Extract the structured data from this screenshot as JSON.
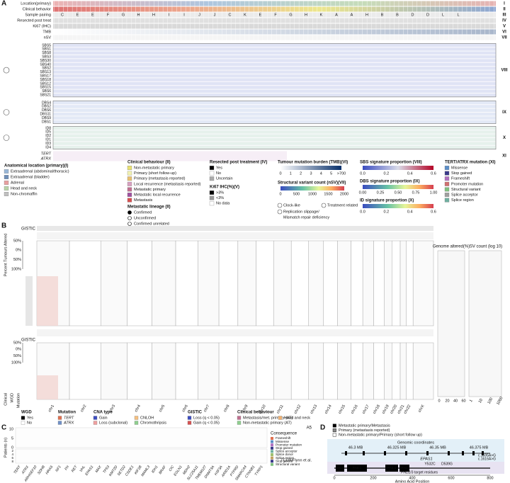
{
  "panel_a": {
    "letter": "A",
    "rows": [
      "Location(primary)",
      "Clinical behavior",
      "Sample pairing",
      "Resected post treat",
      "Ki67 (IHC)",
      "TMB",
      "nSV"
    ],
    "row_numerals": [
      "I",
      "II",
      "III",
      "IV",
      "V",
      "VI",
      "VII"
    ],
    "pairing_letters": [
      "C",
      "E",
      "E",
      "F",
      "G",
      "H",
      "H",
      "I",
      "I",
      "J",
      "J",
      "C",
      "K",
      "E",
      "F",
      "G",
      "H",
      "K",
      "A",
      "A",
      "H",
      "B",
      "B",
      "D",
      "D",
      "L",
      "L"
    ],
    "sbs_rows": [
      "SBS5",
      "SBS1",
      "SBS8",
      "SBS3",
      "SBS30",
      "SBS40",
      "SBS2",
      "SBS13",
      "SBS17",
      "SBS18",
      "SBS12",
      "SBS15",
      "SBS6",
      "SBS21"
    ],
    "sbs_numeral": "VIII",
    "dbs_rows": [
      "DBS4",
      "DBS2",
      "DBS6",
      "DBS11",
      "DBS9",
      "DBS1"
    ],
    "dbs_numeral": "IX",
    "id_rows": [
      "ID8",
      "ID5",
      "ID2",
      "ID1",
      "ID3",
      "ID4"
    ],
    "id_numeral": "X",
    "gene_rows": [
      "TERT",
      "ATRX"
    ],
    "gene_numeral": "XI",
    "legend_location": {
      "title": "Anatomical location (primary)(I)",
      "items": [
        "Extraadrenal (abdominal/thoracic)",
        "Extraadrenal (bladder)",
        "Adrenal",
        "Head and neck",
        "Non-chromaffin"
      ]
    },
    "legend_clinical": {
      "title": "Clinical behaviour (II)",
      "items": [
        "Non-metastatic primary",
        "Primary (short follow-up)",
        "Primary (metastasis reported)",
        "Local recurrence (metastasis reported)",
        "Metastatic primary",
        "Metastatic local recurrence",
        "Metastasis"
      ]
    },
    "legend_lineage": {
      "title": "Metastatic lineage (II)",
      "items": [
        "Confirmed",
        "Unconfirmed",
        "Confirmed unrelated"
      ]
    },
    "legend_resected": {
      "title": "Resected post treatment (IV)",
      "items": [
        "Yes",
        "No",
        "Uncertain"
      ]
    },
    "legend_ki67": {
      "title": "Ki67 IHC(%)(V)",
      "items": [
        ">3%",
        "<3%",
        "No data"
      ]
    },
    "legend_tmb": {
      "title": "Tumour mutation burden (TMB)(VI)",
      "ticks": [
        "0",
        "1",
        "2",
        "3",
        "4",
        "5",
        ">700"
      ]
    },
    "legend_nsv": {
      "title": "Structural variant count (nSV)(VII)",
      "ticks": [
        "0",
        "500",
        "1000",
        "1500",
        "2000"
      ]
    },
    "legend_icons": [
      "Clock-like",
      "Treatment related",
      "Replication slippage/",
      "Mismatch repair deficiency"
    ],
    "legend_sbs": {
      "title": "SBS signature proportion (VIII)",
      "ticks": [
        "0.0",
        "0.2",
        "0.4",
        "0.6"
      ]
    },
    "legend_dbs": {
      "title": "DBS signature proportion (IX)",
      "ticks": [
        "0.00",
        "0.25",
        "0.50",
        "0.75",
        "1.00"
      ]
    },
    "legend_id": {
      "title": "ID signature proportion (X)",
      "ticks": [
        "0.0",
        "0.2",
        "0.4",
        "0.6"
      ]
    },
    "legend_mutation": {
      "title": "TERT/ATRX mutation (XI)",
      "items": [
        "Missense",
        "Stop gained",
        "Frameshift",
        "Promoter mutation",
        "Structural variant",
        "Splice acceptor",
        "Splice region"
      ]
    }
  },
  "panel_b": {
    "letter": "B",
    "gistic": "GISTIC",
    "title_sympathetic": "Sympathetic (chromaffin)",
    "title_parasympathetic": "Parasympathetic (non-chromaffin)",
    "percent_ticks": [
      "50%",
      "0%",
      "50%",
      "100%"
    ],
    "percent_label": "Percent Tumours Altered",
    "track_labels": [
      "Clinical",
      "WGD",
      "Mutation"
    ],
    "chromosomes": [
      "chr1",
      "chr2",
      "chr3",
      "chr4",
      "chr5",
      "chr6",
      "chr7",
      "chr8",
      "chr9",
      "chr10",
      "chr11",
      "chr12",
      "chr13",
      "chr14",
      "chr15",
      "chr16",
      "chr17",
      "chr18",
      "chr19",
      "chr20",
      "chr21",
      "chr22",
      "chrX"
    ],
    "genome_altered": {
      "title": "Genome altered(%)",
      "ticks": [
        "0",
        "20",
        "40",
        "60"
      ]
    },
    "sv_count": {
      "title": "SV count (log 10)",
      "ticks": [
        "1",
        "10",
        "100",
        "1000"
      ]
    },
    "legend_wgd": {
      "title": "WGD",
      "items": [
        "Yes",
        "No"
      ]
    },
    "legend_mutation": {
      "title": "Mutation",
      "items": [
        "TERT",
        "ATRX"
      ]
    },
    "legend_cna": {
      "title": "CNA type",
      "items": [
        "Gain",
        "Loss (subclonal)",
        "CNLOH",
        "Chromothripsis"
      ]
    },
    "legend_gistic": {
      "title": "GISTIC",
      "items": [
        "Loss (q < 0.05)",
        "Gain (q < 0.05)"
      ]
    },
    "legend_clinical": {
      "title": "Clinical behaviour",
      "items": [
        "Metastasis/met. primary (AT)",
        "Non-metastatic primary (AT)",
        "Head and neck"
      ]
    }
  },
  "panel_c": {
    "letter": "C",
    "subtitle": "A5",
    "y_label": "Patients (n)",
    "upper_ticks": [
      "10",
      "5",
      "0"
    ],
    "lower_ticks": [
      "2",
      "4",
      "6",
      "8"
    ],
    "source": "TCGA/Flynn et al.",
    "legend": {
      "title": "Consequence",
      "items": [
        "Frameshift",
        "Missense",
        "Promoter mutation",
        "Stop gained",
        "Splice acceptor",
        "Splice donor",
        "Splice region",
        "Stop gained",
        "Structural variant"
      ]
    },
    "genes": [
      "TERT",
      "ATRX",
      "ARHGEF10",
      "SDHB",
      "HRAS",
      "NF1",
      "FH",
      "RET",
      "VHL",
      "EPAS1",
      "MAX",
      "TP53",
      "KMT2D",
      "SETD2",
      "CSDE1",
      "KIF1B",
      "MAML3",
      "IDH1",
      "BRAF",
      "CIC",
      "EGLN1",
      "MDH2",
      "SLC25A11",
      "TMEM127",
      "DNMT3A",
      "H3F3A",
      "ARID1A",
      "PTPRD",
      "SMARCA4",
      "CTNNB1",
      "TYRP1"
    ]
  },
  "panel_d": {
    "letter": "D",
    "legend": [
      "Metastatic primary/Metastasis",
      "Primary (metastasis reported)",
      "Non-metastatic primary/Primary (short follow up)"
    ],
    "coords_title": "Genomic coordinates",
    "coords": [
      "46.3 MB",
      "46.325 MB",
      "46.35 MB",
      "46.375 MB"
    ],
    "gene": "EPAS1",
    "variants": [
      "c.1595A>G",
      "c.1616A>G"
    ],
    "domains": [
      "bHLH",
      "PAS 1",
      "PAS 2",
      "PAC"
    ],
    "residues": [
      "Y532C",
      "D539G"
    ],
    "residue_note": "PHD2/3 target residues",
    "axis_ticks": [
      "0",
      "200",
      "400",
      "600",
      "800"
    ],
    "axis_label": "Amino Acid Position"
  }
}
